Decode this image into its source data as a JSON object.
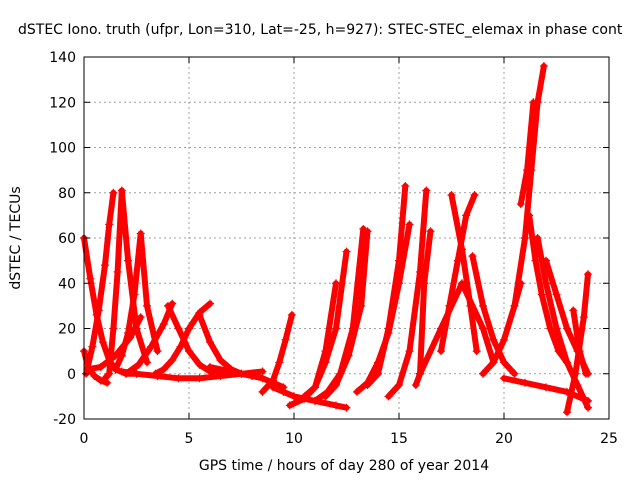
{
  "chart_data": {
    "type": "scatter",
    "title": "dSTEC Iono. truth (ufpr, Lon=310, Lat=-25, h=927): STEC-STEC_elemax in phase cont",
    "xlabel": "GPS time / hours of day 280 of year 2014",
    "ylabel": "dSTEC  / TECUs",
    "xlim": [
      0,
      25
    ],
    "ylim": [
      -20,
      140
    ],
    "xticks": [
      0,
      5,
      10,
      15,
      20,
      25
    ],
    "yticks": [
      -20,
      0,
      20,
      40,
      60,
      80,
      100,
      120,
      140
    ],
    "xtick_labels": [
      "0",
      "5",
      "10",
      "15",
      "20",
      "25"
    ],
    "ytick_labels": [
      "-20",
      "0",
      "20",
      "40",
      "60",
      "80",
      "100",
      "120",
      "140"
    ],
    "grid": true,
    "marker": "plus",
    "color": "#ff0000",
    "series": [
      {
        "x": [
          0.0,
          0.3,
          0.6,
          0.9,
          1.2,
          1.5,
          2.0,
          2.5
        ],
        "y": [
          60,
          42,
          26,
          14,
          6,
          2,
          0,
          0
        ]
      },
      {
        "x": [
          0.0,
          0.2,
          0.5,
          0.8,
          1.1
        ],
        "y": [
          10,
          3,
          -1,
          -3,
          -4
        ]
      },
      {
        "x": [
          0.1,
          0.4,
          0.7,
          1.0,
          1.2,
          1.4
        ],
        "y": [
          0,
          12,
          28,
          48,
          66,
          80
        ]
      },
      {
        "x": [
          1.0,
          1.2,
          1.4,
          1.6,
          1.8,
          2.1,
          2.5,
          3.0
        ],
        "y": [
          -2,
          0,
          20,
          45,
          81,
          50,
          20,
          5
        ]
      },
      {
        "x": [
          1.5,
          1.8,
          2.1,
          2.4,
          2.7,
          3.0,
          3.5
        ],
        "y": [
          2,
          8,
          18,
          35,
          62,
          30,
          10
        ]
      },
      {
        "x": [
          0.2,
          0.8,
          1.5,
          2.2,
          2.7
        ],
        "y": [
          2,
          3,
          8,
          16,
          25
        ]
      },
      {
        "x": [
          2.0,
          2.6,
          3.2,
          3.8,
          4.2
        ],
        "y": [
          0,
          4,
          12,
          22,
          31
        ]
      },
      {
        "x": [
          3.4,
          3.8,
          4.2,
          4.6,
          5.0,
          5.5,
          6.0
        ],
        "y": [
          0,
          2,
          6,
          12,
          20,
          27,
          31
        ]
      },
      {
        "x": [
          4.0,
          4.5,
          5.0,
          5.5,
          6.0,
          6.5
        ],
        "y": [
          30,
          20,
          10,
          4,
          1,
          0
        ]
      },
      {
        "x": [
          5.5,
          6.0,
          6.5,
          7.0,
          7.5,
          8.0
        ],
        "y": [
          26,
          14,
          6,
          2,
          0,
          -1
        ]
      },
      {
        "x": [
          1.8,
          2.5,
          3.5,
          4.5,
          5.5,
          6.5,
          7.5,
          8.5
        ],
        "y": [
          1,
          0,
          -1,
          -2,
          -2,
          -1,
          0,
          1
        ]
      },
      {
        "x": [
          6.0,
          7.0,
          8.0,
          8.5,
          9.0,
          9.5
        ],
        "y": [
          3,
          1,
          -1,
          -2,
          -4,
          -6
        ]
      },
      {
        "x": [
          8.5,
          9.0,
          9.3,
          9.6,
          9.9
        ],
        "y": [
          -8,
          -3,
          5,
          15,
          26
        ]
      },
      {
        "x": [
          9.0,
          9.5,
          10.0,
          11.0,
          12.0,
          12.5
        ],
        "y": [
          -6,
          -8,
          -10,
          -12,
          -14,
          -15
        ]
      },
      {
        "x": [
          9.8,
          10.5,
          11.0,
          11.5,
          12.0
        ],
        "y": [
          -14,
          -11,
          -6,
          10,
          40
        ]
      },
      {
        "x": [
          10.5,
          11.0,
          11.5,
          12.0,
          12.5
        ],
        "y": [
          -10,
          -6,
          5,
          20,
          54
        ]
      },
      {
        "x": [
          11.0,
          11.6,
          12.2,
          12.8,
          13.3
        ],
        "y": [
          -12,
          -8,
          0,
          20,
          64
        ]
      },
      {
        "x": [
          11.5,
          12.0,
          12.6,
          13.2,
          13.5
        ],
        "y": [
          -10,
          -5,
          8,
          30,
          63
        ]
      },
      {
        "x": [
          13.5,
          14.0,
          14.5,
          15.0,
          15.3
        ],
        "y": [
          -5,
          0,
          20,
          50,
          83
        ]
      },
      {
        "x": [
          13.0,
          13.5,
          14.0,
          14.5,
          15.0,
          15.5
        ],
        "y": [
          -8,
          -4,
          5,
          18,
          40,
          66
        ]
      },
      {
        "x": [
          14.5,
          15.0,
          15.5,
          16.0,
          16.3
        ],
        "y": [
          -10,
          -5,
          10,
          45,
          81
        ]
      },
      {
        "x": [
          15.8,
          16.0,
          16.2,
          16.5
        ],
        "y": [
          -5,
          0,
          40,
          63
        ]
      },
      {
        "x": [
          17.0,
          17.4,
          17.8,
          18.2,
          18.6
        ],
        "y": [
          10,
          30,
          50,
          70,
          79
        ]
      },
      {
        "x": [
          17.5,
          18.0,
          18.4,
          18.7
        ],
        "y": [
          79,
          55,
          30,
          10
        ]
      },
      {
        "x": [
          18.5,
          19.0,
          19.5,
          20.0,
          20.5
        ],
        "y": [
          52,
          30,
          15,
          5,
          0
        ]
      },
      {
        "x": [
          16.0,
          17.0,
          18.0,
          19.0,
          19.5
        ],
        "y": [
          0,
          20,
          40,
          20,
          5
        ]
      },
      {
        "x": [
          19.0,
          19.5,
          20.0,
          20.5,
          20.8
        ],
        "y": [
          0,
          5,
          15,
          30,
          40
        ]
      },
      {
        "x": [
          20.5,
          21.0,
          21.3,
          21.6,
          21.9
        ],
        "y": [
          30,
          60,
          90,
          120,
          136
        ]
      },
      {
        "x": [
          20.8,
          21.1,
          21.4
        ],
        "y": [
          75,
          90,
          120
        ]
      },
      {
        "x": [
          21.2,
          21.5,
          21.8,
          22.2,
          22.6,
          23.0
        ],
        "y": [
          70,
          50,
          35,
          20,
          10,
          5
        ]
      },
      {
        "x": [
          21.6,
          22.0,
          22.5,
          23.0,
          23.5,
          24.0
        ],
        "y": [
          60,
          40,
          20,
          5,
          -5,
          -15
        ]
      },
      {
        "x": [
          22.0,
          22.5,
          23.0,
          23.5,
          24.0
        ],
        "y": [
          50,
          35,
          20,
          10,
          0
        ]
      },
      {
        "x": [
          23.0,
          23.4,
          23.8,
          24.0
        ],
        "y": [
          -17,
          0,
          25,
          44
        ]
      },
      {
        "x": [
          23.3,
          23.6,
          23.9
        ],
        "y": [
          28,
          10,
          0
        ]
      },
      {
        "x": [
          20.0,
          21.0,
          22.0,
          23.0,
          24.0
        ],
        "y": [
          -2,
          -4,
          -6,
          -8,
          -12
        ]
      }
    ]
  }
}
